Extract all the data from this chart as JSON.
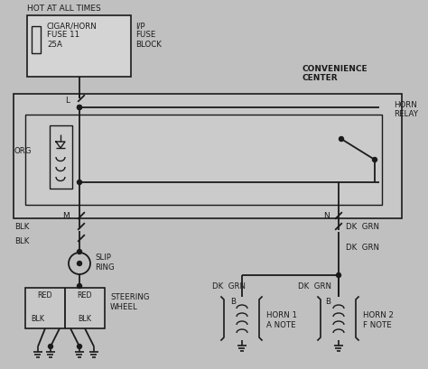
{
  "bg_color": "#c0c0c0",
  "line_color": "#1a1a1a",
  "title": "HOT AT ALL TIMES",
  "fuse_box_label": "CIGAR/HORN\nFUSE 11\n25A",
  "fuse_block_label": "I/P\nFUSE\nBLOCK",
  "convenience_center": "CONVENIENCE\nCENTER",
  "horn_relay": "HORN\nRELAY",
  "slip_ring": "SLIP\nRING",
  "steering_wheel": "STEERING\nWHEEL",
  "horn1_line1": "HORN 1",
  "horn1_line2": "A NOTE",
  "horn2_line1": "HORN 2",
  "horn2_line2": "F NOTE"
}
